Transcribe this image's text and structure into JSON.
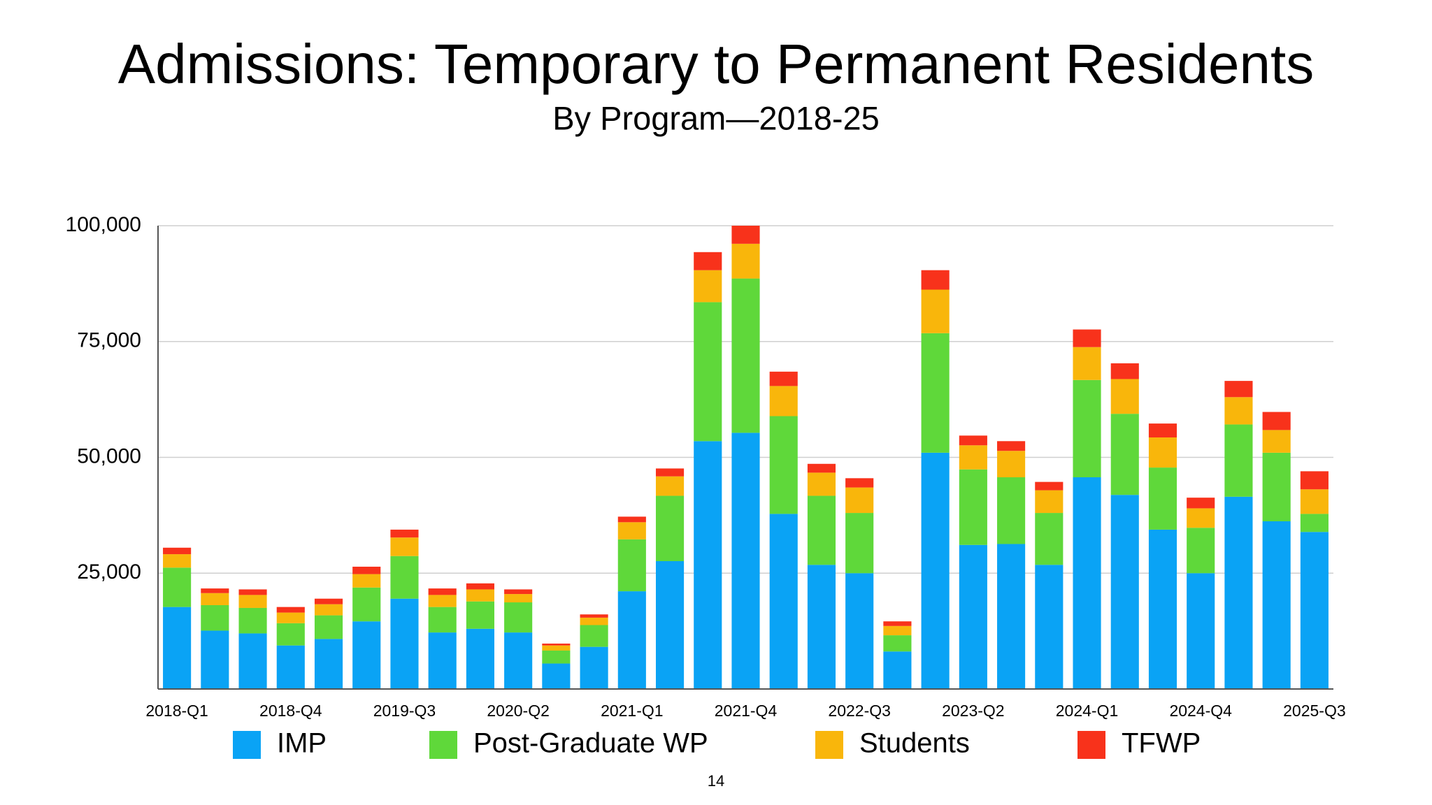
{
  "chart_data": {
    "type": "stacked-bar",
    "title": "Admissions: Temporary to Permanent Residents",
    "subtitle": "By Program—2018-25",
    "categories": [
      "2018-Q1",
      null,
      null,
      "2018-Q4",
      null,
      null,
      "2019-Q3",
      null,
      null,
      "2020-Q2",
      null,
      null,
      "2021-Q1",
      null,
      null,
      "2021-Q4",
      null,
      null,
      "2022-Q3",
      null,
      null,
      "2023-Q2",
      null,
      null,
      "2024-Q1",
      null,
      null,
      "2024-Q4",
      null,
      null,
      "2025-Q3"
    ],
    "series": [
      {
        "name": "IMP",
        "color": "#0aa3f5",
        "values": [
          17700,
          12600,
          12000,
          9400,
          10800,
          14600,
          19500,
          12200,
          13000,
          12200,
          5500,
          9100,
          21100,
          27600,
          53500,
          55300,
          37800,
          26800,
          25000,
          8100,
          51000,
          31100,
          31300,
          26800,
          45700,
          41900,
          34400,
          25000,
          41500,
          36200,
          33900
        ]
      },
      {
        "name": "Post-Graduate WP",
        "color": "#5fd83a",
        "values": [
          8500,
          5500,
          5500,
          4800,
          5100,
          7300,
          9200,
          5500,
          5900,
          6500,
          2800,
          4700,
          11200,
          14100,
          30000,
          33300,
          21100,
          14900,
          13000,
          3500,
          25800,
          16300,
          14400,
          11200,
          21000,
          17500,
          13400,
          9800,
          15600,
          14800,
          3900
        ]
      },
      {
        "name": "Students",
        "color": "#f9b60b",
        "values": [
          2900,
          2600,
          2800,
          2300,
          2400,
          2900,
          4000,
          2600,
          2600,
          1800,
          1100,
          1600,
          3700,
          4200,
          6900,
          7500,
          6500,
          5000,
          5500,
          2000,
          9400,
          5200,
          5700,
          4900,
          7100,
          7500,
          6500,
          4200,
          5900,
          4900,
          5300
        ]
      },
      {
        "name": "TFWP",
        "color": "#f8321b",
        "values": [
          1400,
          1000,
          1200,
          1200,
          1200,
          1600,
          1700,
          1400,
          1300,
          1000,
          400,
          700,
          1200,
          1700,
          3900,
          3900,
          3100,
          1900,
          2000,
          1000,
          4200,
          2100,
          2100,
          1800,
          3800,
          3400,
          3000,
          2300,
          3500,
          3900,
          3900
        ]
      }
    ],
    "ylim": [
      0,
      100000
    ],
    "yticks": [
      {
        "value": 25000,
        "label": "25,000"
      },
      {
        "value": 50000,
        "label": "50,000"
      },
      {
        "value": 75000,
        "label": "75,000"
      },
      {
        "value": 100000,
        "label": "100,000"
      }
    ],
    "grid": true,
    "legend": "bottom"
  },
  "page_number": "14"
}
